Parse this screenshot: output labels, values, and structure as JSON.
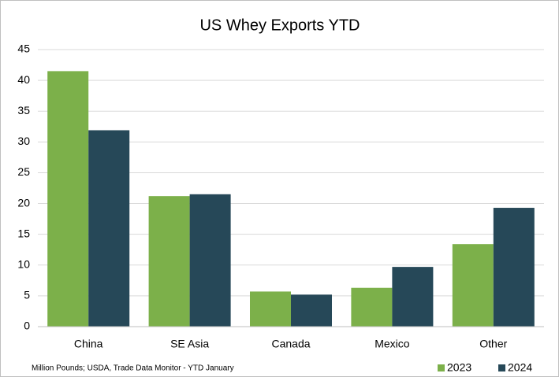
{
  "chart_data": {
    "type": "bar",
    "title": "US Whey Exports YTD",
    "note": "Million Pounds; USDA, Trade Data Monitor - YTD January",
    "categories": [
      "China",
      "SE Asia",
      "Canada",
      "Mexico",
      "Other"
    ],
    "series": [
      {
        "name": "2023",
        "color": "#7cb04a",
        "values": [
          41.5,
          21.2,
          5.7,
          6.3,
          13.4
        ]
      },
      {
        "name": "2024",
        "color": "#264858",
        "values": [
          31.9,
          21.5,
          5.2,
          9.7,
          19.3
        ]
      }
    ],
    "ylim": [
      0,
      45
    ],
    "yticks": [
      0,
      5,
      10,
      15,
      20,
      25,
      30,
      35,
      40,
      45
    ],
    "grid": true,
    "legend": "bottom-right"
  }
}
